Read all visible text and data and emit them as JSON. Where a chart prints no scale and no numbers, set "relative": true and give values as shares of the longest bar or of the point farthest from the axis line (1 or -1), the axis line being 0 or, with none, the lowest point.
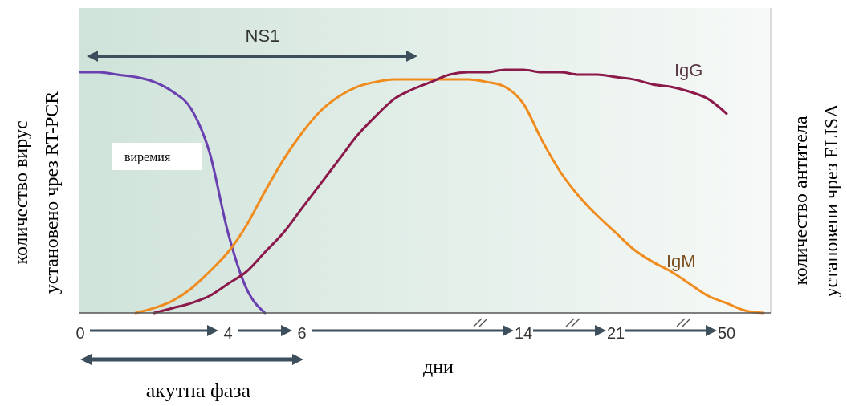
{
  "chart_data": {
    "type": "line",
    "relative": true,
    "categories": [
      "0",
      null,
      null,
      null,
      null,
      null,
      null,
      null,
      "4",
      null,
      null,
      null,
      "6",
      null,
      null,
      null,
      null,
      null,
      null,
      null,
      null,
      null,
      null,
      null,
      "14",
      null,
      null,
      null,
      null,
      "21",
      null,
      null,
      null,
      null,
      null,
      "50",
      null,
      null
    ],
    "xlabel": "дни",
    "ylabel": "количество вирус\nустановено чрез RT-PCR",
    "y2label": "количество антитела\nустановени чрез ELISA",
    "annotations": [
      "NS1",
      "виремия",
      "IgG",
      "IgM",
      "акутна фаза"
    ],
    "series": [
      {
        "color": "#6a3fb0",
        "values": [
          0.99,
          0.99,
          0.98,
          0.97,
          0.95,
          0.91,
          0.84,
          0.66,
          0.33,
          0.1,
          0,
          null,
          null,
          null,
          null,
          null,
          null,
          null,
          null,
          null,
          null,
          null,
          null,
          null,
          null,
          null,
          null,
          null,
          null,
          null,
          null,
          null,
          null,
          null,
          null,
          null,
          null,
          null
        ]
      },
      {
        "color": "#f08c1e",
        "values": [
          null,
          null,
          null,
          0,
          0.02,
          0.05,
          0.1,
          0.17,
          0.25,
          0.36,
          0.5,
          0.63,
          0.74,
          0.83,
          0.89,
          0.93,
          0.95,
          0.96,
          0.96,
          0.96,
          0.96,
          0.96,
          0.95,
          0.93,
          0.86,
          0.71,
          0.58,
          0.48,
          0.4,
          0.33,
          0.26,
          0.21,
          0.17,
          0.12,
          0.07,
          0.04,
          0.01,
          0
        ]
      },
      {
        "color": "#8b1a4a",
        "values": [
          null,
          null,
          null,
          null,
          0,
          0.02,
          0.04,
          0.07,
          0.12,
          0.17,
          0.25,
          0.33,
          0.43,
          0.53,
          0.63,
          0.73,
          0.81,
          0.88,
          0.92,
          0.95,
          0.98,
          0.99,
          0.99,
          1,
          1,
          0.99,
          0.99,
          0.98,
          0.98,
          0.97,
          0.96,
          0.94,
          0.93,
          0.91,
          0.88,
          0.82,
          null,
          null
        ]
      }
    ]
  }
}
